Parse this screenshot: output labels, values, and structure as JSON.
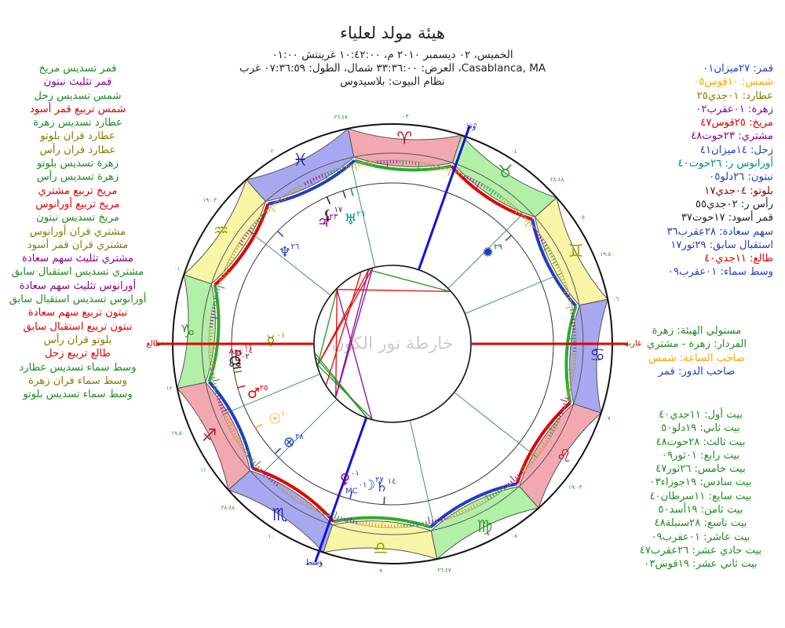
{
  "header": {
    "title": "هيئة مولد لعلياء",
    "line1": "الخميس، ٠٢ ديسمبر ٢٠١٠ م، ١٠:٤٢:٠٠ غرينتش ٠١:٠٠",
    "line2": "Casablanca, MA، العرض: ٣٣:٣٦:٠٠ شمال، الطول: ٠٧:٣٦:٥٩ غرب",
    "line3": "نظام البيوت: بلاسيدوس"
  },
  "aspects": [
    {
      "text": "قمر تسديس مريخ",
      "color": "#228b22"
    },
    {
      "text": "قمر تثليث نبتون",
      "color": "#8b008b"
    },
    {
      "text": "شمس تسديس زحل",
      "color": "#228b22"
    },
    {
      "text": "شمس تربيع قمر أسود",
      "color": "#e00000"
    },
    {
      "text": "عطارد تسديس زهرة",
      "color": "#228b22"
    },
    {
      "text": "عطارد قران بلوتو",
      "color": "#808000"
    },
    {
      "text": "عطارد قران رأس",
      "color": "#808000"
    },
    {
      "text": "زهرة تسديس بلوتو",
      "color": "#228b22"
    },
    {
      "text": "زهرة تسديس رأس",
      "color": "#228b22"
    },
    {
      "text": "مريخ تربيع مشتري",
      "color": "#e00000"
    },
    {
      "text": "مريخ تربيع أورانوس",
      "color": "#e00000"
    },
    {
      "text": "مريخ تسديس نبتون",
      "color": "#228b22"
    },
    {
      "text": "مشتري قران أورانوس",
      "color": "#808000"
    },
    {
      "text": "مشتري قران قمر أسود",
      "color": "#808000"
    },
    {
      "text": "مشتري تثليث سهم سعادة",
      "color": "#8b008b"
    },
    {
      "text": "مشتري تسديس استقبال سابق",
      "color": "#228b22"
    },
    {
      "text": "أورانوس تثليث سهم سعادة",
      "color": "#8b008b"
    },
    {
      "text": "أورانوس تسديس استقبال سابق",
      "color": "#228b22"
    },
    {
      "text": "نبتون تربيع سهم سعادة",
      "color": "#e00000"
    },
    {
      "text": "نبتون تربيع استقبال سابق",
      "color": "#e00000"
    },
    {
      "text": "بلوتو قران رأس",
      "color": "#808000"
    },
    {
      "text": "طالع تربيع زحل",
      "color": "#e00000"
    },
    {
      "text": "وسط سماء تسديس عطارد",
      "color": "#228b22"
    },
    {
      "text": "وسط سماء قران زهرة",
      "color": "#808000"
    },
    {
      "text": "وسط سماء تسديس بلوتو",
      "color": "#228b22"
    }
  ],
  "positions": [
    {
      "text": "قمر: ٢٧ميزان٠١",
      "color": "#1f3fbf"
    },
    {
      "text": "شمس: ١٠قوس٠٥",
      "color": "#ffa500"
    },
    {
      "text": "عطارد: ٠١جدي٢٥",
      "color": "#808000"
    },
    {
      "text": "زهرة: ٠١عقرب٠٢",
      "color": "#8b008b"
    },
    {
      "text": "مريخ: ٢٥قوس٤٧",
      "color": "#e00000"
    },
    {
      "text": "مشتري: ٢٣حوت٤٨",
      "color": "#8b008b"
    },
    {
      "text": "زحل: ١٤ميزان٤١",
      "color": "#1f3fbf"
    },
    {
      "text": "أورانوس ر: ٢٦حوت٤٠",
      "color": "#008b8b"
    },
    {
      "text": "نبتون: ٢٦دلو٠٥",
      "color": "#1f3fbf"
    },
    {
      "text": "بلوتو: ٠٤جدي١٧",
      "color": "#8b0000"
    },
    {
      "text": "رأس ر: ٠٢جدي٥٥",
      "color": "#222222"
    },
    {
      "text": "قمر أسود: ١٧حوت٣٧",
      "color": "#222222"
    },
    {
      "text": "سهم سعادة: ٢٨عقرب٣٦",
      "color": "#1f3fbf"
    },
    {
      "text": "استقبال سابق: ٢٩ثور١٧",
      "color": "#1f3fbf"
    },
    {
      "text": "طالع: ١١جدي٤٠",
      "color": "#e00000"
    },
    {
      "text": "وسط سماء: ٠١عقرب٠٩",
      "color": "#1f3fbf"
    }
  ],
  "rulers": [
    {
      "text": "مستولي الهيئة: زهرة",
      "color": "#228b22"
    },
    {
      "text": "الفردار: زهرة - مشتري",
      "color": "#228b22"
    },
    {
      "text": "صاحب الساعة: شمس",
      "color": "#ffa500"
    },
    {
      "text": "صاحب الدور: قمر",
      "color": "#1f3fbf"
    }
  ],
  "cusps": [
    "بيت أول: ١١جدي٤٠",
    "بيت ثاني: ١٩دلو٥٠",
    "بيت ثالث: ٢٨حوت٤٨",
    "بيت رابع: ٠١ثور٠٩",
    "بيت خامس: ٢٦ثور٤٧",
    "بيت سادس: ١٩جوزاء٠٣",
    "بيت سابع: ١١سرطان٤٠",
    "بيت ثامن: ١٩أسد٥٠",
    "بيت تاسع: ٢٨سنبلة٤٨",
    "بيت عاشر: ٠١عقرب٠٩",
    "بيت حادي عشر: ٢٦عقرب٤٧",
    "بيت ثاني عشر: ١٩قوس٠٣"
  ],
  "wheel": {
    "watermark": "خارطة نور الكون",
    "axis_labels": {
      "mc": "وسط",
      "ic": "وتد",
      "asc": "طالع",
      "dsc": "غارب"
    },
    "cusp_labels": [
      "١١:٤٠",
      "١٩:٠٣",
      "٢٦:٤٧",
      "٠١:٠٩",
      "٢٨:٤٨",
      "١٩:٥٠",
      "١١:٤٠",
      "١٩:٠٣",
      "٢٦:٤٧",
      "٠١:٠٩",
      "٢٨:٤٨",
      "١٩:٥٠"
    ],
    "house_numbers": [
      "٠١",
      "٠٢",
      "٠٣",
      "٠٤",
      "٠٥",
      "٠٦",
      "٠٧",
      "٠٨",
      "٠٩",
      "١٠",
      "١١",
      "١٢"
    ],
    "signs": [
      {
        "glyph": "♑",
        "color": "#3a9a3a",
        "fill": "#b2f0a8"
      },
      {
        "glyph": "♒",
        "color": "#a0a000",
        "fill": "#f8f5a6"
      },
      {
        "glyph": "♓",
        "color": "#2a2aa8",
        "fill": "#a8a8f0"
      },
      {
        "glyph": "♈",
        "color": "#b01f2f",
        "fill": "#f2a8b0"
      },
      {
        "glyph": "♉",
        "color": "#3a9a3a",
        "fill": "#b2f0a8"
      },
      {
        "glyph": "♊",
        "color": "#a0a000",
        "fill": "#f8f5a6"
      },
      {
        "glyph": "♋",
        "color": "#2a2aa8",
        "fill": "#a8a8f0"
      },
      {
        "glyph": "♌",
        "color": "#b01f2f",
        "fill": "#f2a8b0"
      },
      {
        "glyph": "♍",
        "color": "#3a9a3a",
        "fill": "#b2f0a8"
      },
      {
        "glyph": "♎",
        "color": "#a0a000",
        "fill": "#f8f5a6"
      },
      {
        "glyph": "♏",
        "color": "#2a2aa8",
        "fill": "#a8a8f0"
      },
      {
        "glyph": "♐",
        "color": "#b01f2f",
        "fill": "#f2a8b0"
      }
    ],
    "planets": [
      {
        "name": "moon",
        "glyph": "☽",
        "deg": "٢٧",
        "color": "#1f3fbf",
        "lon": 207.0
      },
      {
        "name": "sun",
        "glyph": "☉",
        "deg": "١٠",
        "color": "#ffa500",
        "lon": 250.1
      },
      {
        "name": "mercury",
        "glyph": "☿",
        "deg": "٠١",
        "color": "#808000",
        "lon": 271.4
      },
      {
        "name": "venus",
        "glyph": "♀",
        "deg": "٠١",
        "color": "#8b008b",
        "lon": 211.0
      },
      {
        "name": "mars",
        "glyph": "♂",
        "deg": "٢٥",
        "color": "#e00000",
        "lon": 265.8
      },
      {
        "name": "jupiter",
        "glyph": "♃",
        "deg": "٢٣",
        "color": "#8b008b",
        "lon": 353.8
      },
      {
        "name": "saturn",
        "glyph": "♄",
        "deg": "١٤",
        "color": "#1f3fbf",
        "lon": 194.7
      },
      {
        "name": "uranus",
        "glyph": "♅",
        "deg": "٢٦",
        "color": "#008b8b",
        "lon": 356.7
      },
      {
        "name": "neptune",
        "glyph": "♆",
        "deg": "٢٦",
        "color": "#1f3fbf",
        "lon": 326.1
      },
      {
        "name": "pluto",
        "glyph": "♇",
        "deg": "٠٤",
        "color": "#8b0000",
        "lon": 274.3
      },
      {
        "name": "north-node",
        "glyph": "☊",
        "deg": "٠٢",
        "color": "#222222",
        "lon": 272.9
      },
      {
        "name": "black-moon",
        "glyph": "⚸",
        "deg": "١٧",
        "color": "#222222",
        "lon": 347.6
      },
      {
        "name": "part-of-fortune",
        "glyph": "⊗",
        "deg": "٢٨",
        "color": "#1f3fbf",
        "lon": 238.6
      },
      {
        "name": "prenatal-syzygy",
        "glyph": "✹",
        "deg": "٢٩",
        "color": "#1f3fbf",
        "lon": 59.3
      }
    ],
    "asc_label": {
      "glyph": "Asc",
      "deg": "١١",
      "color": "#e00000"
    },
    "mc_label": {
      "glyph": "MC",
      "deg": "٠١",
      "color": "#1f3fbf"
    }
  }
}
